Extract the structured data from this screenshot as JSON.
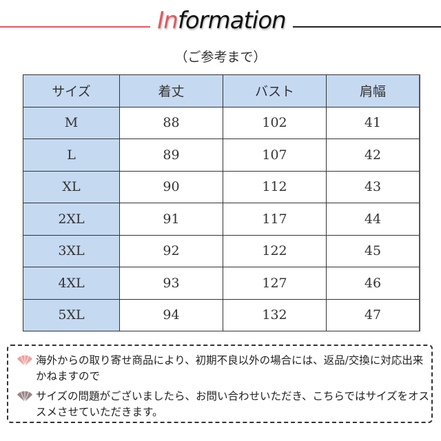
{
  "header": {
    "title_highlight": "In",
    "title_rest": "formation",
    "subtitle": "（ご参考まで）",
    "accent_color": "#e0595f"
  },
  "table": {
    "headers": [
      "サイズ",
      "着丈",
      "バスト",
      "肩幅"
    ],
    "rows": [
      [
        "M",
        "88",
        "102",
        "41"
      ],
      [
        "L",
        "89",
        "107",
        "42"
      ],
      [
        "XL",
        "90",
        "112",
        "43"
      ],
      [
        "2XL",
        "91",
        "117",
        "44"
      ],
      [
        "3XL",
        "92",
        "122",
        "45"
      ],
      [
        "4XL",
        "93",
        "127",
        "46"
      ],
      [
        "5XL",
        "94",
        "132",
        "47"
      ]
    ],
    "header_color": "#c5d9f1"
  },
  "notes": [
    {
      "icon": "fan-icon",
      "color": "#f0a0a0",
      "text": "海外からの取り寄せ商品により、初期不良以外の場合には、返品/交換に対応出来かねますので"
    },
    {
      "icon": "fan-icon",
      "color": "#9a8585",
      "text": "サイズの問題がございましたら、お問い合わせいただき、こちらではサイズをオススメさせていただきます。"
    }
  ]
}
